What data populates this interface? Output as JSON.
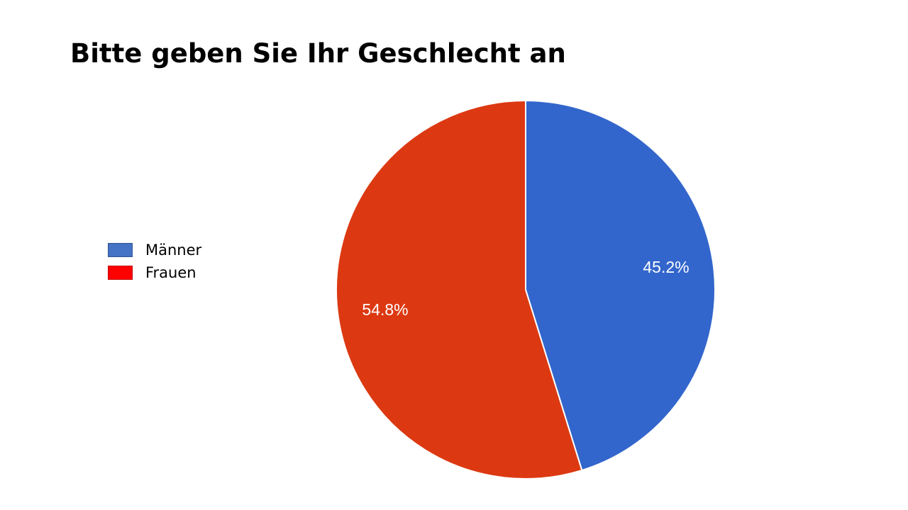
{
  "chart_data": {
    "type": "pie",
    "title": "Bitte geben Sie Ihr Geschlecht an",
    "legend_position": "left",
    "slices": [
      {
        "name": "Männer",
        "value": 45.2,
        "label": "45.2%",
        "color": "#3366cc",
        "legend_color": "#4472c4"
      },
      {
        "name": "Frauen",
        "value": 54.8,
        "label": "54.8%",
        "color": "#dc3912",
        "legend_color": "#ff0000"
      }
    ]
  }
}
